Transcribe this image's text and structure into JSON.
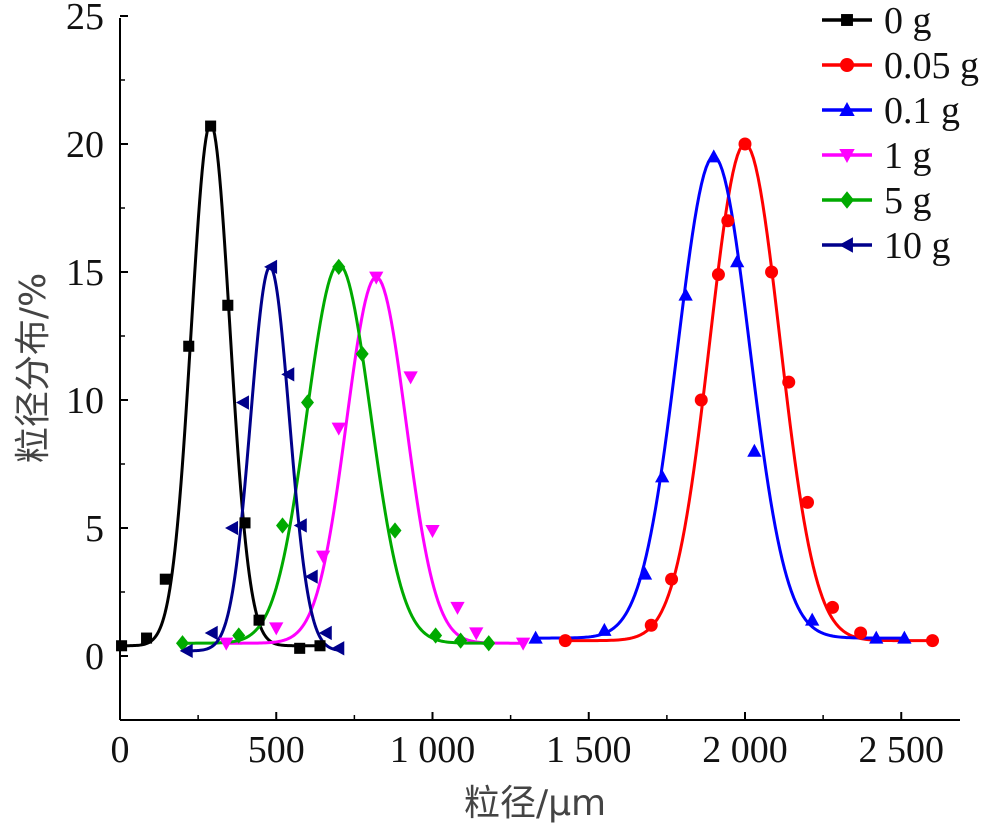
{
  "chart_data": {
    "type": "line",
    "xlabel": "粒径/μm",
    "ylabel": "粒径分布/%",
    "xlim": [
      0,
      2650
    ],
    "ylim": [
      -2.5,
      25
    ],
    "xticks": [
      0,
      500,
      1000,
      1500,
      2000,
      2500
    ],
    "xtick_labels": [
      "0",
      "500",
      "1 000",
      "1 500",
      "2 000",
      "2 500"
    ],
    "yticks": [
      0,
      5,
      10,
      15,
      20,
      25
    ],
    "ytick_labels": [
      "0",
      "5",
      "10",
      "15",
      "20",
      "25"
    ],
    "legend_position": "top-right",
    "grid": false,
    "series": [
      {
        "name": "0 g",
        "color": "#000000",
        "marker": "square",
        "curve": {
          "x0": 290,
          "sigma": 62,
          "peak": 20.4,
          "base": 0.4
        },
        "points": [
          [
            5,
            0.4
          ],
          [
            85,
            0.7
          ],
          [
            145,
            3.0
          ],
          [
            220,
            12.1
          ],
          [
            290,
            20.7
          ],
          [
            345,
            13.7
          ],
          [
            400,
            5.2
          ],
          [
            445,
            1.4
          ],
          [
            575,
            0.3
          ],
          [
            640,
            0.4
          ]
        ]
      },
      {
        "name": "0.05 g",
        "color": "#ff0000",
        "marker": "circle",
        "curve": {
          "x0": 2000,
          "sigma": 112,
          "peak": 19.4,
          "base": 0.6
        },
        "points": [
          [
            1425,
            0.6
          ],
          [
            1700,
            1.2
          ],
          [
            1765,
            3.0
          ],
          [
            1860,
            10.0
          ],
          [
            1915,
            14.9
          ],
          [
            1945,
            17.0
          ],
          [
            2000,
            20.0
          ],
          [
            2085,
            15.0
          ],
          [
            2140,
            10.7
          ],
          [
            2200,
            6.0
          ],
          [
            2280,
            1.9
          ],
          [
            2370,
            0.9
          ],
          [
            2600,
            0.6
          ]
        ]
      },
      {
        "name": "0.1 g",
        "color": "#0000ff",
        "marker": "triangle-up",
        "curve": {
          "x0": 1900,
          "sigma": 115,
          "peak": 18.8,
          "base": 0.7
        },
        "points": [
          [
            1330,
            0.7
          ],
          [
            1550,
            1.0
          ],
          [
            1680,
            3.2
          ],
          [
            1735,
            7.0
          ],
          [
            1810,
            14.1
          ],
          [
            1900,
            19.5
          ],
          [
            1975,
            15.4
          ],
          [
            2030,
            8.0
          ],
          [
            2215,
            1.4
          ],
          [
            2420,
            0.7
          ],
          [
            2510,
            0.7
          ]
        ]
      },
      {
        "name": "1 g",
        "color": "#ff00ff",
        "marker": "triangle-down",
        "curve": {
          "x0": 820,
          "sigma": 95,
          "peak": 14.3,
          "base": 0.5
        },
        "points": [
          [
            340,
            0.5
          ],
          [
            500,
            1.1
          ],
          [
            650,
            3.9
          ],
          [
            700,
            8.9
          ],
          [
            820,
            14.8
          ],
          [
            930,
            10.9
          ],
          [
            1000,
            4.9
          ],
          [
            1080,
            1.9
          ],
          [
            1140,
            0.9
          ],
          [
            1290,
            0.5
          ]
        ]
      },
      {
        "name": "5 g",
        "color": "#00aa00",
        "marker": "diamond",
        "curve": {
          "x0": 700,
          "sigma": 102,
          "peak": 14.8,
          "base": 0.5
        },
        "points": [
          [
            200,
            0.5
          ],
          [
            380,
            0.8
          ],
          [
            520,
            5.1
          ],
          [
            600,
            9.9
          ],
          [
            700,
            15.2
          ],
          [
            775,
            11.8
          ],
          [
            880,
            4.9
          ],
          [
            1010,
            0.8
          ],
          [
            1090,
            0.6
          ],
          [
            1180,
            0.5
          ]
        ]
      },
      {
        "name": "10 g",
        "color": "#00008b",
        "marker": "triangle-left",
        "curve": {
          "x0": 480,
          "sigma": 62,
          "peak": 15.0,
          "base": 0.2
        },
        "points": [
          [
            215,
            0.2
          ],
          [
            295,
            0.9
          ],
          [
            360,
            5.0
          ],
          [
            395,
            9.9
          ],
          [
            485,
            15.2
          ],
          [
            540,
            11.0
          ],
          [
            580,
            5.1
          ],
          [
            615,
            3.1
          ],
          [
            660,
            0.9
          ],
          [
            700,
            0.3
          ]
        ]
      }
    ]
  }
}
